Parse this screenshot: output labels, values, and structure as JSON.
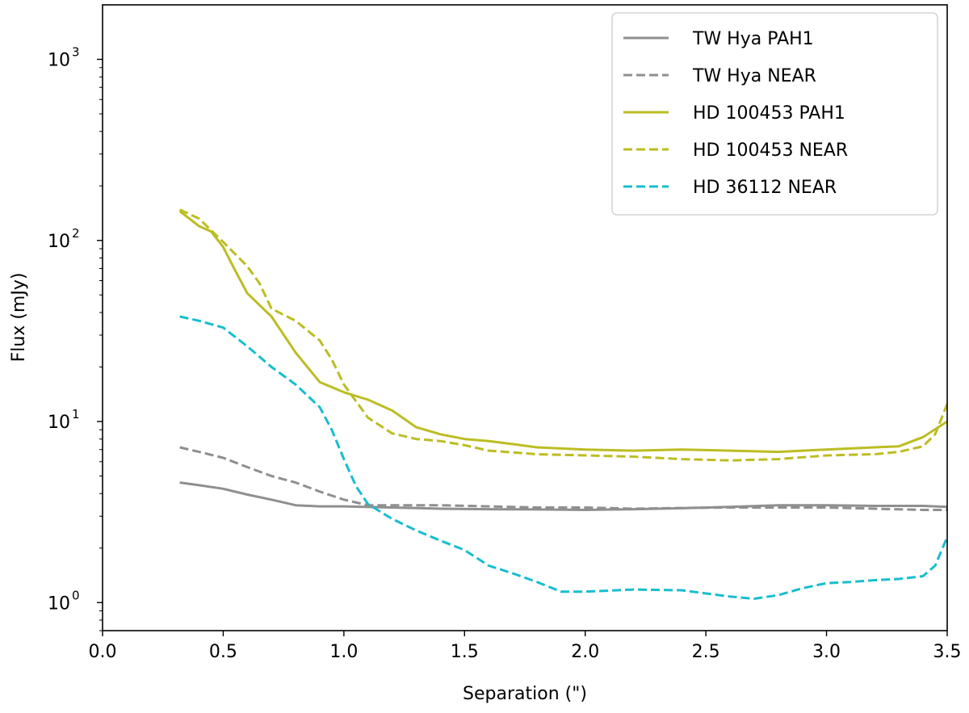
{
  "chart_data": {
    "type": "line",
    "xlabel": "Separation (\")",
    "ylabel": "Flux (mJy)",
    "xlim": [
      0.0,
      3.5
    ],
    "ylim": [
      0.7,
      2000
    ],
    "yscale": "log",
    "legend_position": "top-right",
    "x_ticks": [
      "0.0",
      "0.5",
      "1.0",
      "1.5",
      "2.0",
      "2.5",
      "3.0",
      "3.5"
    ],
    "y_ticks": [
      {
        "value": 1,
        "base": "10",
        "exp": "0"
      },
      {
        "value": 10,
        "base": "10",
        "exp": "1"
      },
      {
        "value": 100,
        "base": "10",
        "exp": "2"
      },
      {
        "value": 1000,
        "base": "10",
        "exp": "3"
      }
    ],
    "series": [
      {
        "name": "TW Hya PAH1",
        "color": "#8f8f8f",
        "style": "solid",
        "x": [
          0.32,
          0.4,
          0.5,
          0.6,
          0.7,
          0.8,
          0.9,
          1.0,
          1.2,
          1.4,
          1.6,
          1.8,
          2.0,
          2.2,
          2.4,
          2.6,
          2.8,
          3.0,
          3.2,
          3.4,
          3.5
        ],
        "y": [
          4.6,
          4.45,
          4.25,
          3.95,
          3.7,
          3.45,
          3.4,
          3.4,
          3.35,
          3.3,
          3.28,
          3.27,
          3.25,
          3.28,
          3.32,
          3.38,
          3.45,
          3.45,
          3.42,
          3.42,
          3.38
        ]
      },
      {
        "name": "TW Hya NEAR",
        "color": "#8f8f8f",
        "style": "dashed",
        "x": [
          0.32,
          0.4,
          0.5,
          0.6,
          0.7,
          0.8,
          0.9,
          1.0,
          1.1,
          1.2,
          1.4,
          1.6,
          1.8,
          2.0,
          2.2,
          2.4,
          2.6,
          2.8,
          3.0,
          3.2,
          3.4,
          3.5
        ],
        "y": [
          7.2,
          6.8,
          6.3,
          5.6,
          5.0,
          4.6,
          4.1,
          3.7,
          3.45,
          3.45,
          3.45,
          3.4,
          3.35,
          3.35,
          3.3,
          3.33,
          3.35,
          3.35,
          3.35,
          3.3,
          3.25,
          3.25
        ]
      },
      {
        "name": "HD 100453 PAH1",
        "color": "#bcbd22",
        "style": "solid",
        "x": [
          0.32,
          0.4,
          0.45,
          0.5,
          0.55,
          0.6,
          0.7,
          0.8,
          0.9,
          1.0,
          1.1,
          1.2,
          1.3,
          1.4,
          1.5,
          1.6,
          1.7,
          1.8,
          2.0,
          2.2,
          2.4,
          2.6,
          2.8,
          3.0,
          3.2,
          3.3,
          3.4,
          3.5
        ],
        "y": [
          145,
          120,
          112,
          92,
          68,
          51,
          38,
          24,
          16.5,
          14.5,
          13.2,
          11.5,
          9.3,
          8.5,
          8.0,
          7.8,
          7.5,
          7.2,
          7.0,
          6.9,
          7.0,
          6.9,
          6.8,
          7.0,
          7.2,
          7.3,
          8.2,
          10.0
        ]
      },
      {
        "name": "HD 100453 NEAR",
        "color": "#bcbd22",
        "style": "dashed",
        "x": [
          0.32,
          0.4,
          0.5,
          0.6,
          0.65,
          0.7,
          0.8,
          0.9,
          0.95,
          1.0,
          1.1,
          1.2,
          1.3,
          1.4,
          1.5,
          1.6,
          1.8,
          2.0,
          2.2,
          2.4,
          2.6,
          2.8,
          3.0,
          3.2,
          3.3,
          3.4,
          3.45,
          3.5
        ],
        "y": [
          148,
          132,
          98,
          72,
          58,
          42,
          36,
          28,
          22,
          16,
          10.5,
          8.6,
          8.0,
          7.8,
          7.4,
          6.9,
          6.6,
          6.5,
          6.4,
          6.2,
          6.1,
          6.2,
          6.5,
          6.6,
          6.8,
          7.3,
          8.5,
          12.5
        ]
      },
      {
        "name": "HD 36112 NEAR",
        "color": "#17becf",
        "style": "dashed",
        "x": [
          0.32,
          0.4,
          0.5,
          0.6,
          0.7,
          0.8,
          0.9,
          0.95,
          1.0,
          1.05,
          1.1,
          1.2,
          1.3,
          1.4,
          1.5,
          1.6,
          1.7,
          1.8,
          1.9,
          2.0,
          2.2,
          2.4,
          2.6,
          2.7,
          2.8,
          2.9,
          3.0,
          3.1,
          3.2,
          3.3,
          3.4,
          3.45,
          3.5
        ],
        "y": [
          38,
          36,
          33,
          26,
          20,
          16,
          12,
          9,
          6.2,
          4.4,
          3.5,
          2.9,
          2.5,
          2.2,
          1.95,
          1.6,
          1.45,
          1.3,
          1.15,
          1.15,
          1.18,
          1.17,
          1.08,
          1.05,
          1.1,
          1.2,
          1.28,
          1.3,
          1.33,
          1.35,
          1.4,
          1.6,
          2.3
        ]
      }
    ]
  }
}
